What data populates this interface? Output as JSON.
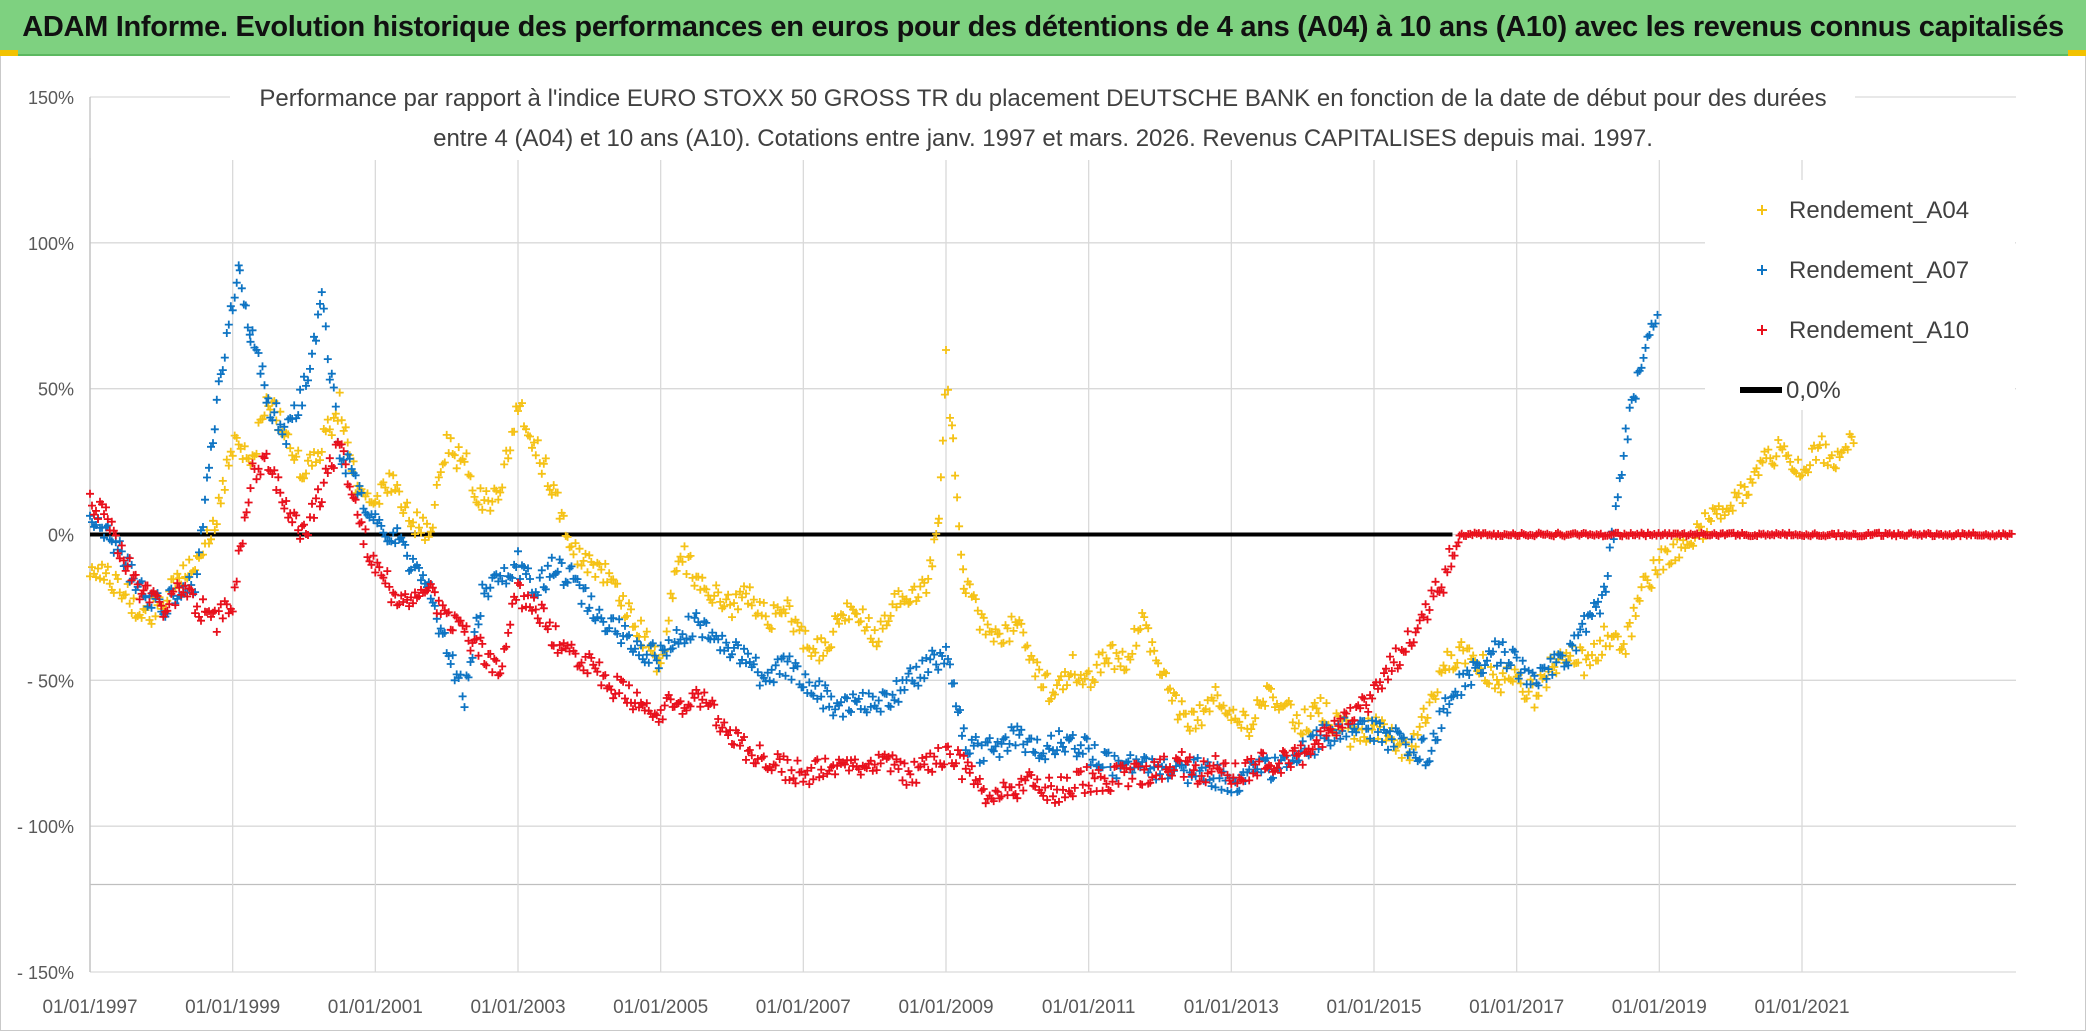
{
  "banner": {
    "title": "ADAM Informe. Evolution historique des performances en euros pour des détentions de 4 ans (A04) à 10 ans (A10) avec les revenus connus capitalisés"
  },
  "chart_data": {
    "type": "scatter",
    "title_line1": "Performance par rapport à l'indice EURO STOXX 50 GROSS TR  du placement DEUTSCHE BANK en fonction de la date de début pour des durées",
    "title_line2": "entre 4 (A04) et 10 ans (A10). Cotations entre janv. 1997 et mars. 2026. Revenus CAPITALISES depuis mai. 1997.",
    "ylim": [
      -150,
      150
    ],
    "y_ticks": [
      {
        "value": 150,
        "label": "150%"
      },
      {
        "value": 100,
        "label": "100%"
      },
      {
        "value": 50,
        "label": "50%"
      },
      {
        "value": 0,
        "label": "0%"
      },
      {
        "value": -50,
        "label": "- 50%"
      },
      {
        "value": -100,
        "label": "- 100%"
      },
      {
        "value": -150,
        "label": "- 150%"
      }
    ],
    "xlim": [
      1997.0,
      2024.0
    ],
    "x_ticks": [
      {
        "value": 1997,
        "label": "01/01/1997"
      },
      {
        "value": 1999,
        "label": "01/01/1999"
      },
      {
        "value": 2001,
        "label": "01/01/2001"
      },
      {
        "value": 2003,
        "label": "01/01/2003"
      },
      {
        "value": 2005,
        "label": "01/01/2005"
      },
      {
        "value": 2007,
        "label": "01/01/2007"
      },
      {
        "value": 2009,
        "label": "01/01/2009"
      },
      {
        "value": 2011,
        "label": "01/01/2011"
      },
      {
        "value": 2013,
        "label": "01/01/2013"
      },
      {
        "value": 2015,
        "label": "01/01/2015"
      },
      {
        "value": 2017,
        "label": "01/01/2017"
      },
      {
        "value": 2019,
        "label": "01/01/2019"
      },
      {
        "value": 2021,
        "label": "01/01/2021"
      }
    ],
    "legend_position": "top-right",
    "legend": [
      {
        "name": "Rendement_A04",
        "marker": "+",
        "color": "#f5c216"
      },
      {
        "name": "Rendement_A07",
        "marker": "+",
        "color": "#0e74c3"
      },
      {
        "name": "Rendement_A10",
        "marker": "+",
        "color": "#e8101c"
      },
      {
        "name": "0,0%",
        "marker": "line",
        "color": "#000000"
      }
    ],
    "series": [
      {
        "name": "Rendement_A04",
        "color": "#f5c216",
        "x": [
          1997.0,
          1997.25,
          1997.5,
          1997.75,
          1998.0,
          1998.25,
          1998.5,
          1998.75,
          1999.0,
          1999.25,
          1999.5,
          1999.75,
          2000.0,
          2000.25,
          2000.5,
          2000.75,
          2001.0,
          2001.25,
          2001.5,
          2001.75,
          2002.0,
          2002.25,
          2002.5,
          2002.75,
          2003.0,
          2003.25,
          2003.5,
          2003.75,
          2004.0,
          2004.25,
          2004.5,
          2004.75,
          2005.0,
          2005.25,
          2005.5,
          2005.75,
          2006.0,
          2006.25,
          2006.5,
          2006.75,
          2007.0,
          2007.25,
          2007.5,
          2007.75,
          2008.0,
          2008.25,
          2008.5,
          2008.75,
          2008.9,
          2009.0,
          2009.1,
          2009.25,
          2009.5,
          2009.75,
          2010.0,
          2010.25,
          2010.5,
          2010.75,
          2011.0,
          2011.25,
          2011.5,
          2011.75,
          2012.0,
          2012.25,
          2012.5,
          2012.75,
          2013.0,
          2013.25,
          2013.5,
          2013.75,
          2014.0,
          2014.25,
          2014.5,
          2014.75,
          2015.0,
          2015.25,
          2015.5,
          2015.75,
          2016.0,
          2016.25,
          2016.5,
          2016.75,
          2017.0,
          2017.25,
          2017.5,
          2017.75,
          2018.0,
          2018.25,
          2018.5,
          2018.75,
          2019.0,
          2019.25,
          2019.5,
          2019.75,
          2020.0,
          2020.25,
          2020.5,
          2020.75,
          2021.0,
          2021.25,
          2021.5,
          2021.75
        ],
        "values": [
          -10,
          -15,
          -20,
          -28,
          -25,
          -15,
          -10,
          5,
          30,
          25,
          45,
          35,
          20,
          30,
          45,
          15,
          10,
          20,
          5,
          0,
          30,
          25,
          10,
          15,
          45,
          30,
          15,
          -5,
          -10,
          -15,
          -25,
          -35,
          -45,
          -5,
          -15,
          -20,
          -25,
          -20,
          -30,
          -25,
          -35,
          -40,
          -30,
          -25,
          -35,
          -25,
          -20,
          -15,
          5,
          60,
          30,
          -15,
          -30,
          -35,
          -30,
          -45,
          -55,
          -45,
          -50,
          -40,
          -45,
          -30,
          -45,
          -60,
          -65,
          -55,
          -60,
          -65,
          -55,
          -60,
          -65,
          -60,
          -65,
          -70,
          -65,
          -70,
          -75,
          -60,
          -45,
          -40,
          -45,
          -50,
          -50,
          -55,
          -45,
          -40,
          -45,
          -35,
          -40,
          -20,
          -10,
          -5,
          0,
          5,
          10,
          15,
          25,
          30,
          20,
          30,
          25,
          35
        ]
      },
      {
        "name": "Rendement_A07",
        "color": "#0e74c3",
        "x": [
          1997.0,
          1997.25,
          1997.5,
          1997.75,
          1998.0,
          1998.25,
          1998.5,
          1998.75,
          1999.0,
          1999.1,
          1999.25,
          1999.5,
          1999.75,
          2000.0,
          2000.25,
          2000.5,
          2000.75,
          2001.0,
          2001.25,
          2001.5,
          2001.75,
          2002.0,
          2002.25,
          2002.5,
          2002.75,
          2003.0,
          2003.25,
          2003.5,
          2003.75,
          2004.0,
          2004.25,
          2004.5,
          2004.75,
          2005.0,
          2005.25,
          2005.5,
          2005.75,
          2006.0,
          2006.25,
          2006.5,
          2006.75,
          2007.0,
          2007.25,
          2007.5,
          2007.75,
          2008.0,
          2008.25,
          2008.5,
          2008.75,
          2009.0,
          2009.25,
          2009.5,
          2009.75,
          2010.0,
          2010.25,
          2010.5,
          2010.75,
          2011.0,
          2011.25,
          2011.5,
          2011.75,
          2012.0,
          2012.25,
          2012.5,
          2012.75,
          2013.0,
          2013.25,
          2013.5,
          2013.75,
          2014.0,
          2014.25,
          2014.5,
          2014.75,
          2015.0,
          2015.25,
          2015.5,
          2015.75,
          2016.0,
          2016.25,
          2016.5,
          2016.75,
          2017.0,
          2017.25,
          2017.5,
          2017.75,
          2018.0,
          2018.25,
          2018.5,
          2018.75,
          2019.0
        ],
        "values": [
          5,
          0,
          -10,
          -20,
          -25,
          -20,
          -15,
          40,
          80,
          90,
          70,
          45,
          35,
          50,
          80,
          30,
          15,
          5,
          0,
          -10,
          -20,
          -40,
          -55,
          -20,
          -15,
          -10,
          -20,
          -10,
          -15,
          -25,
          -30,
          -35,
          -40,
          -42,
          -35,
          -30,
          -35,
          -40,
          -45,
          -50,
          -45,
          -50,
          -55,
          -60,
          -55,
          -58,
          -55,
          -50,
          -45,
          -40,
          -70,
          -75,
          -72,
          -68,
          -75,
          -72,
          -70,
          -75,
          -78,
          -80,
          -78,
          -80,
          -82,
          -80,
          -83,
          -85,
          -82,
          -80,
          -78,
          -75,
          -70,
          -68,
          -65,
          -68,
          -70,
          -72,
          -75,
          -60,
          -50,
          -45,
          -40,
          -45,
          -50,
          -45,
          -40,
          -30,
          -20,
          30,
          60,
          80
        ]
      },
      {
        "name": "Rendement_A10",
        "color": "#e8101c",
        "x": [
          1997.0,
          1997.25,
          1997.5,
          1997.75,
          1998.0,
          1998.25,
          1998.5,
          1998.75,
          1999.0,
          1999.25,
          1999.5,
          1999.75,
          2000.0,
          2000.25,
          2000.5,
          2000.75,
          2001.0,
          2001.25,
          2001.5,
          2001.75,
          2002.0,
          2002.25,
          2002.5,
          2002.75,
          2003.0,
          2003.25,
          2003.5,
          2003.75,
          2004.0,
          2004.25,
          2004.5,
          2004.75,
          2005.0,
          2005.25,
          2005.5,
          2005.75,
          2006.0,
          2006.25,
          2006.5,
          2006.75,
          2007.0,
          2007.25,
          2007.5,
          2007.75,
          2008.0,
          2008.25,
          2008.5,
          2008.75,
          2009.0,
          2009.25,
          2009.5,
          2009.75,
          2010.0,
          2010.25,
          2010.5,
          2010.75,
          2011.0,
          2011.25,
          2011.5,
          2011.75,
          2012.0,
          2012.25,
          2012.5,
          2012.75,
          2013.0,
          2013.25,
          2013.5,
          2013.75,
          2014.0,
          2014.25,
          2014.5,
          2014.75,
          2015.0,
          2015.25,
          2015.5,
          2015.75,
          2016.0,
          2016.1,
          2016.2
        ],
        "values": [
          10,
          5,
          -10,
          -20,
          -25,
          -20,
          -25,
          -30,
          -25,
          20,
          25,
          10,
          0,
          15,
          30,
          5,
          -10,
          -20,
          -25,
          -20,
          -30,
          -35,
          -40,
          -45,
          -20,
          -25,
          -35,
          -40,
          -45,
          -50,
          -55,
          -58,
          -60,
          -58,
          -57,
          -60,
          -70,
          -75,
          -78,
          -80,
          -82,
          -80,
          -78,
          -80,
          -78,
          -80,
          -82,
          -80,
          -75,
          -80,
          -88,
          -87,
          -86,
          -85,
          -88,
          -86,
          -84,
          -85,
          -83,
          -82,
          -80,
          -78,
          -82,
          -80,
          -82,
          -80,
          -78,
          -78,
          -75,
          -70,
          -65,
          -62,
          -55,
          -45,
          -35,
          -25,
          -15,
          -5,
          0
        ]
      }
    ]
  }
}
